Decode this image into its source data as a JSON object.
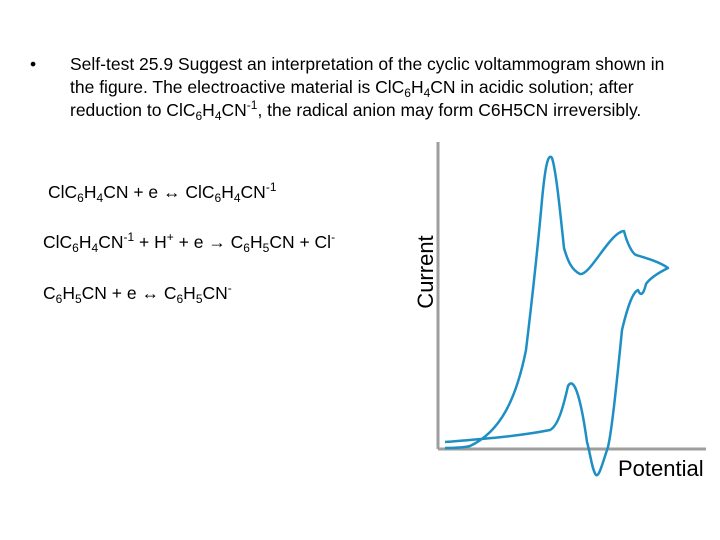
{
  "slide": {
    "bullet_symbol": "•",
    "bullet_text_parts": [
      {
        "t": "Self-test 25.9 Suggest an interpretation of the cyclic voltammogram shown in the figure. The electroactive material is ClC"
      },
      {
        "t": "6",
        "sub": true
      },
      {
        "t": "H"
      },
      {
        "t": "4",
        "sub": true
      },
      {
        "t": "CN in acidic solution; after reduction to ClC"
      },
      {
        "t": "6",
        "sub": true
      },
      {
        "t": "H"
      },
      {
        "t": "4",
        "sub": true
      },
      {
        "t": "CN"
      },
      {
        "t": "-1",
        "sup": true
      },
      {
        "t": ", the radical anion may form C6H5CN irreversibly."
      }
    ],
    "equations": [
      [
        {
          "t": "ClC"
        },
        {
          "t": "6",
          "sub": true
        },
        {
          "t": "H"
        },
        {
          "t": "4",
          "sub": true
        },
        {
          "t": "CN + e ↔ ClC"
        },
        {
          "t": "6",
          "sub": true
        },
        {
          "t": "H"
        },
        {
          "t": "4",
          "sub": true
        },
        {
          "t": "CN"
        },
        {
          "t": "-1",
          "sup": true
        }
      ],
      [
        {
          "t": "ClC"
        },
        {
          "t": "6",
          "sub": true
        },
        {
          "t": "H"
        },
        {
          "t": "4",
          "sub": true
        },
        {
          "t": "CN"
        },
        {
          "t": "-1",
          "sup": true
        },
        {
          "t": " + H"
        },
        {
          "t": "+",
          "sup": true
        },
        {
          "t": " + e → C"
        },
        {
          "t": "6",
          "sub": true
        },
        {
          "t": "H"
        },
        {
          "t": "5",
          "sub": true
        },
        {
          "t": "CN + Cl"
        },
        {
          "t": "-",
          "sup": true
        }
      ],
      [
        {
          "t": "C"
        },
        {
          "t": "6",
          "sub": true
        },
        {
          "t": "H"
        },
        {
          "t": "5",
          "sub": true
        },
        {
          "t": "CN + e ↔ C"
        },
        {
          "t": "6",
          "sub": true
        },
        {
          "t": "H"
        },
        {
          "t": "5",
          "sub": true
        },
        {
          "t": "CN"
        },
        {
          "t": "-",
          "sup": true
        }
      ]
    ]
  },
  "figure": {
    "ylabel": "Current",
    "xlabel": "Potential",
    "axis_color": "#9e9e9e",
    "curve_color": "#1e8fc4"
  }
}
